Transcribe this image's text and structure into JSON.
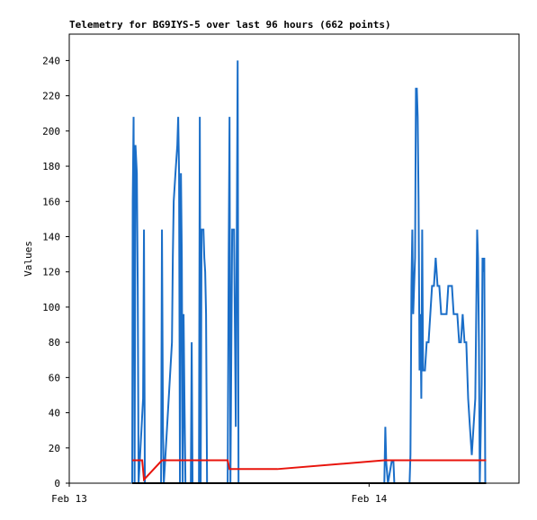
{
  "chart_data": {
    "type": "line",
    "title": "Telemetry for BG9IYS-5 over last 96 hours (662 points)",
    "y_label": "Values",
    "xlim": [
      0,
      36
    ],
    "xticks": [
      {
        "value": 0,
        "label": "Feb 13"
      },
      {
        "value": 24,
        "label": "Feb 14"
      }
    ],
    "ylim": [
      0,
      255
    ],
    "yticks": [
      0,
      20,
      40,
      60,
      80,
      100,
      120,
      140,
      160,
      180,
      200,
      220,
      240
    ],
    "series": [
      {
        "color": "#1a6ec8",
        "x": [
          5.04,
          5.08,
          5.15,
          5.23,
          5.3,
          5.41,
          5.48,
          5.55,
          5.91,
          5.98,
          6.05,
          7.35,
          7.42,
          7.5,
          7.57,
          8.22,
          8.29,
          8.36,
          8.5,
          8.65,
          8.72,
          8.79,
          8.86,
          8.94,
          9.01,
          9.08,
          9.15,
          9.22,
          9.3,
          9.73,
          9.8,
          9.87,
          10.38,
          10.45,
          10.52,
          10.59,
          10.74,
          10.81,
          10.88,
          10.95,
          11.03,
          12.68,
          12.76,
          12.83,
          12.9,
          13.04,
          13.19,
          13.33,
          13.48,
          13.55,
          null,
          25.22,
          25.3,
          25.37,
          25.51,
          25.8,
          25.95,
          26.02,
          null,
          27.24,
          27.31,
          27.39,
          27.46,
          27.53,
          27.68,
          27.75,
          27.82,
          27.89,
          27.96,
          28.04,
          28.11,
          28.18,
          28.25,
          28.32,
          28.47,
          28.61,
          28.76,
          28.9,
          29.04,
          29.19,
          29.33,
          29.48,
          29.62,
          29.77,
          29.91,
          30.05,
          30.2,
          30.34,
          30.49,
          30.63,
          30.77,
          30.92,
          31.06,
          31.21,
          31.35,
          31.49,
          31.64,
          31.78,
          31.93,
          32.07,
          32.22,
          32.36,
          32.5,
          32.65,
          32.72,
          32.79,
          32.86,
          33.01,
          33.08,
          33.15,
          33.22,
          33.3
        ],
        "values": [
          0,
          160,
          208,
          0,
          192,
          176,
          112,
          0,
          48,
          144,
          0,
          0,
          144,
          32,
          0,
          80,
          128,
          160,
          176,
          192,
          208,
          176,
          0,
          176,
          128,
          0,
          96,
          48,
          0,
          0,
          80,
          0,
          0,
          208,
          0,
          144,
          144,
          128,
          120,
          96,
          0,
          0,
          128,
          208,
          0,
          144,
          144,
          32,
          240,
          0,
          null,
          0,
          32,
          12,
          0,
          12,
          12,
          0,
          null,
          0,
          16,
          112,
          144,
          96,
          128,
          224,
          224,
          208,
          160,
          64,
          96,
          48,
          144,
          64,
          64,
          80,
          80,
          96,
          112,
          112,
          128,
          112,
          112,
          96,
          96,
          96,
          96,
          112,
          112,
          112,
          96,
          96,
          96,
          80,
          80,
          96,
          80,
          80,
          48,
          32,
          16,
          32,
          48,
          144,
          128,
          80,
          0,
          56,
          128,
          120,
          128,
          0
        ]
      },
      {
        "color": "#e8140c",
        "x": [
          5.04,
          5.84,
          5.98,
          7.42,
          12.68,
          12.83,
          16.65,
          25.22,
          33.37
        ],
        "values": [
          13,
          13,
          2,
          13,
          13,
          8,
          8,
          13,
          13
        ]
      },
      {
        "color": "#000000",
        "x": [
          5.04,
          33.37
        ],
        "values": [
          0,
          0
        ]
      }
    ]
  }
}
